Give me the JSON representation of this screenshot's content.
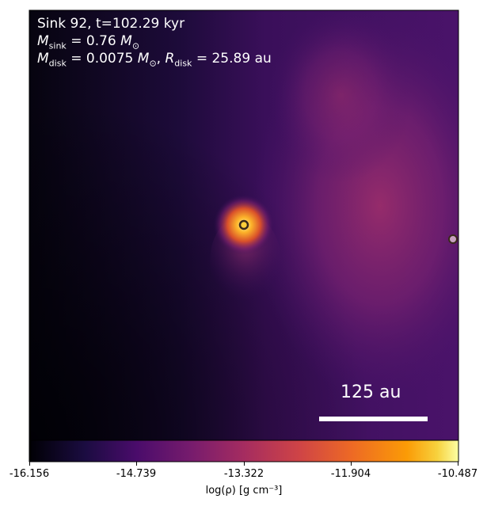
{
  "header": {
    "sink_line": "Sink 92, t=102.29 kyr",
    "msink_value": "0.76",
    "mdisk_value": "0.0075",
    "rdisk_value": "25.89",
    "rdisk_unit": "au"
  },
  "scale_bar": {
    "label": "125 au"
  },
  "colorbar": {
    "ticks": [
      "-16.156",
      "-14.739",
      "-13.322",
      "-11.904",
      "-10.487"
    ],
    "label": "log(ρ) [g cm⁻³]",
    "colormap": "inferno"
  },
  "colors": {
    "background_dark": "#0a0518",
    "filament": "#8a2a6e",
    "sink_core": "#ffd24a",
    "sink_marker": "#c8a0c0"
  }
}
